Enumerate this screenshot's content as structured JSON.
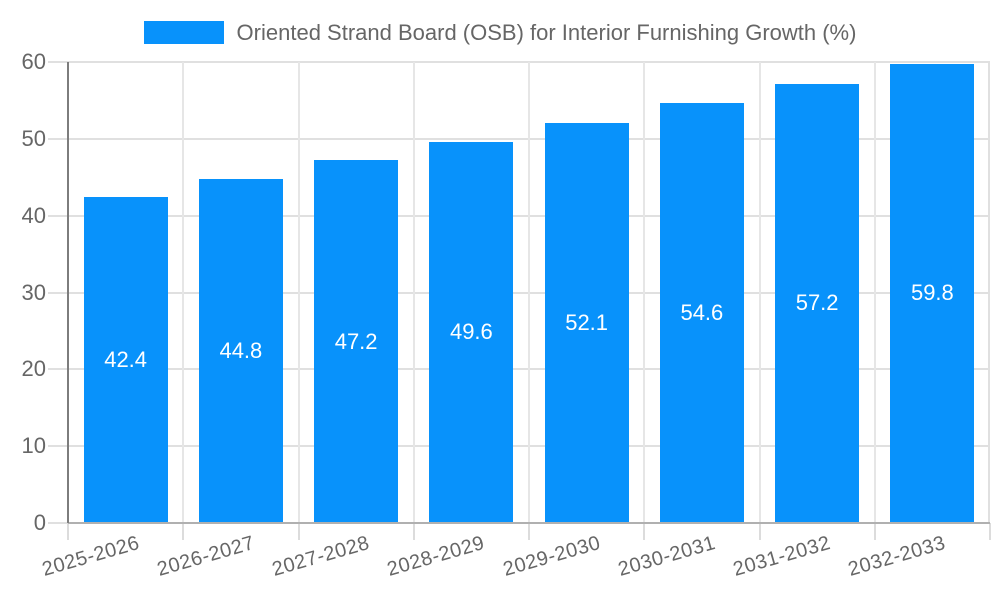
{
  "chart_data": {
    "type": "bar",
    "title": "",
    "legend": "Oriented Strand Board (OSB) for Interior Furnishing Growth (%)",
    "legend_position": "top",
    "categories": [
      "2025-2026",
      "2026-2027",
      "2027-2028",
      "2028-2029",
      "2029-2030",
      "2030-2031",
      "2031-2032",
      "2032-2033"
    ],
    "values": [
      42.4,
      44.8,
      47.2,
      49.6,
      52.1,
      54.6,
      57.2,
      59.8
    ],
    "value_labels": [
      "42.4",
      "44.8",
      "47.2",
      "49.6",
      "52.1",
      "54.6",
      "57.2",
      "59.8"
    ],
    "xlabel": "",
    "ylabel": "",
    "y_ticks": [
      0,
      10,
      20,
      30,
      40,
      50,
      60
    ],
    "ylim": [
      0,
      60
    ],
    "grid": true,
    "colors": {
      "bar": "#0892FB",
      "bar_value_text": "#ffffff",
      "axis_text": "#666666",
      "gridline": "#e0e0e0",
      "y_axis_line": "#7d7d7d",
      "baseline": "#b0b0b0",
      "background": "#ffffff"
    }
  }
}
